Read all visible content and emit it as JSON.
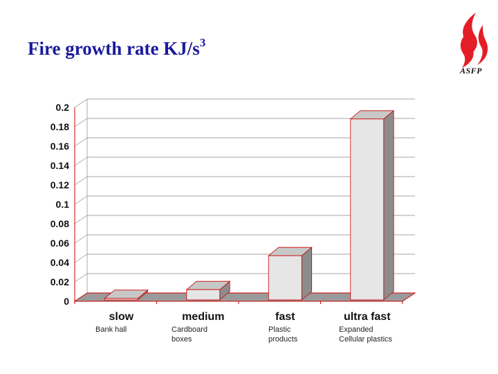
{
  "slide": {
    "title": "Fire growth rate KJ/s",
    "title_exponent": "3"
  },
  "logo": {
    "text": "ASFP",
    "icon": "flame-icon",
    "color": "#e41e26"
  },
  "chart_data": {
    "type": "bar",
    "title": "",
    "xlabel": "",
    "ylabel": "",
    "categories": [
      "slow",
      "medium",
      "fast",
      "ultra fast"
    ],
    "subcategories": [
      "Bank hall",
      "Cardboard\nboxes",
      "Plastic\nproducts",
      "Expanded\nCellular plastics"
    ],
    "values": [
      0.003,
      0.012,
      0.047,
      0.188
    ],
    "ylim": [
      0,
      0.2
    ],
    "yticks": [
      "0",
      "0.02",
      "0.04",
      "0.06",
      "0.08",
      "0.1",
      "0.12",
      "0.14",
      "0.16",
      "0.18",
      "0.2"
    ],
    "grid": true,
    "colors": {
      "bar_front": "#e6e6e6",
      "bar_top": "#c8c8c8",
      "bar_side": "#8c8c8c",
      "bar_edge": "#cc0000",
      "axis": "#cc0000",
      "floor": "#9a9a9a"
    }
  }
}
